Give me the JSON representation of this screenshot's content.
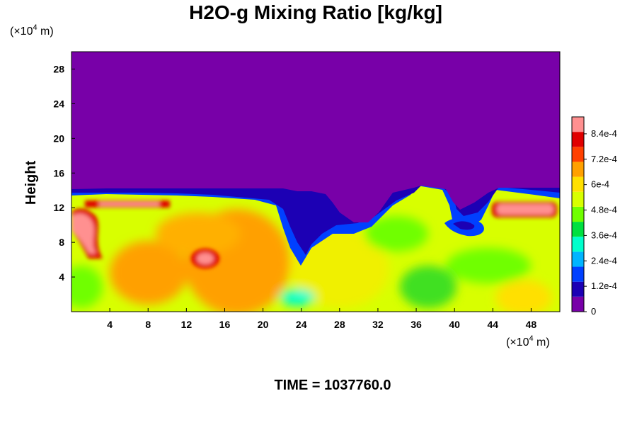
{
  "chart_data": {
    "type": "heatmap",
    "title": "H2O-g Mixing Ratio [kg/kg]",
    "ylabel": "Height",
    "xlabel": "",
    "x_unit": {
      "prefix": "(×10",
      "exp": "4",
      "suffix": " m)"
    },
    "y_unit": {
      "prefix": "(×10",
      "exp": "4",
      "suffix": " m)"
    },
    "xlim": [
      0,
      51
    ],
    "ylim": [
      0,
      30
    ],
    "x_ticks": [
      4,
      8,
      12,
      16,
      20,
      24,
      28,
      32,
      36,
      40,
      44,
      48
    ],
    "x_tick_labels": [
      "4",
      "8",
      "12",
      "16",
      "20",
      "24",
      "28",
      "32",
      "36",
      "40",
      "44",
      "48"
    ],
    "y_ticks": [
      4,
      8,
      12,
      16,
      20,
      24,
      28
    ],
    "y_tick_labels": [
      "4",
      "8",
      "12",
      "16",
      "20",
      "24",
      "28"
    ],
    "colorbar": {
      "min": 0,
      "max": 0.00092,
      "ticks": [
        0,
        0.00012,
        0.00024,
        0.00036,
        0.00048,
        0.0006,
        0.00072,
        0.00084
      ],
      "tick_labels": [
        "0",
        "1.2e-4",
        "2.4e-4",
        "3.6e-4",
        "4.8e-4",
        "6e-4",
        "7.2e-4",
        "8.4e-4"
      ],
      "colors": [
        "#7800a8",
        "#1c00b4",
        "#0040ff",
        "#00b4ff",
        "#00ffcc",
        "#00e040",
        "#70ff00",
        "#d8ff00",
        "#ffe000",
        "#ffa000",
        "#ff4000",
        "#e00000",
        "#ff9090"
      ]
    },
    "field_description": "Dry upper region (value 0) above ~13e4 m; moist turbulent layer below with higher mixing ratio near surface and caps at ~12e4 m",
    "dry_layer_top_profile": {
      "x": [
        0,
        4,
        8,
        12,
        16,
        20,
        22,
        24,
        26,
        28,
        30,
        32,
        34,
        36,
        38,
        40,
        42,
        44,
        46,
        48,
        51
      ],
      "y": [
        13.5,
        13.4,
        13.6,
        13.5,
        13.5,
        13.5,
        12.0,
        9.5,
        11.5,
        12.8,
        10.5,
        10.0,
        10.8,
        11.5,
        12.5,
        11.5,
        11.5,
        13.0,
        13.5,
        13.4,
        13.2
      ]
    },
    "high_value_patches": [
      {
        "x": [
          0,
          3
        ],
        "y": [
          6,
          11
        ],
        "level": 0.00088
      },
      {
        "x": [
          16,
          24
        ],
        "y": [
          0,
          9
        ],
        "level": 0.00066
      },
      {
        "x": [
          13,
          16
        ],
        "y": [
          5,
          7
        ],
        "level": 0.0009
      },
      {
        "x": [
          45,
          50
        ],
        "y": [
          11,
          12.5
        ],
        "level": 0.0009
      },
      {
        "x": [
          2,
          13
        ],
        "y": [
          11.5,
          12.5
        ],
        "level": 0.0009
      }
    ]
  },
  "time_label": "TIME = 1037760.0"
}
